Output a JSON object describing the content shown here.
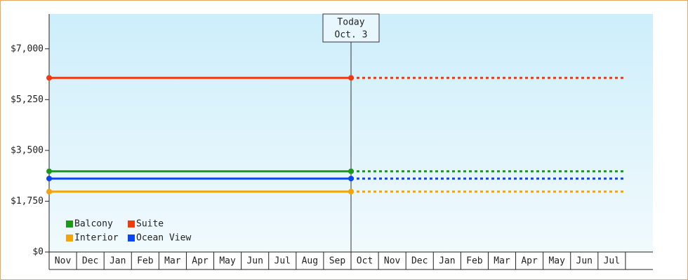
{
  "chart_data": {
    "type": "line",
    "categories": [
      "Nov",
      "Dec",
      "Jan",
      "Feb",
      "Mar",
      "Apr",
      "May",
      "Jun",
      "Jul",
      "Aug",
      "Sep",
      "Oct",
      "Nov",
      "Dec",
      "Jan",
      "Feb",
      "Mar",
      "Apr",
      "May",
      "Jun",
      "Jul",
      null
    ],
    "series": [
      {
        "name": "Balcony",
        "color": "#1a9a1a",
        "values": [
          2780,
          2780,
          2780,
          2780,
          2780,
          2780,
          2780,
          2780,
          2780,
          2780,
          2780,
          2780,
          2780,
          2780,
          2780,
          2780,
          2780,
          2780,
          2780,
          2780,
          2780,
          2780
        ]
      },
      {
        "name": "Suite",
        "color": "#ee3b0b",
        "values": [
          6000,
          6000,
          6000,
          6000,
          6000,
          6000,
          6000,
          6000,
          6000,
          6000,
          6000,
          6000,
          6000,
          6000,
          6000,
          6000,
          6000,
          6000,
          6000,
          6000,
          6000,
          6000
        ]
      },
      {
        "name": "Interior",
        "color": "#f5a30a",
        "values": [
          2080,
          2080,
          2080,
          2080,
          2080,
          2080,
          2080,
          2080,
          2080,
          2080,
          2080,
          2080,
          2080,
          2080,
          2080,
          2080,
          2080,
          2080,
          2080,
          2080,
          2080,
          2080
        ]
      },
      {
        "name": "Ocean View",
        "color": "#0a46f0",
        "values": [
          2530,
          2530,
          2530,
          2530,
          2530,
          2530,
          2530,
          2530,
          2530,
          2530,
          2530,
          2530,
          2530,
          2530,
          2530,
          2530,
          2530,
          2530,
          2530,
          2530,
          2530,
          2530
        ]
      }
    ],
    "ylim": [
      0,
      8200
    ],
    "yticks": [
      {
        "value": 0,
        "label": "$0"
      },
      {
        "value": 1750,
        "label": "$1,750"
      },
      {
        "value": 3500,
        "label": "$3,500"
      },
      {
        "value": 5250,
        "label": "$5,250"
      },
      {
        "value": 7000,
        "label": "$7,000"
      }
    ],
    "annotation": {
      "lines": [
        "Today",
        "Oct. 3"
      ],
      "category": "Oct"
    }
  }
}
